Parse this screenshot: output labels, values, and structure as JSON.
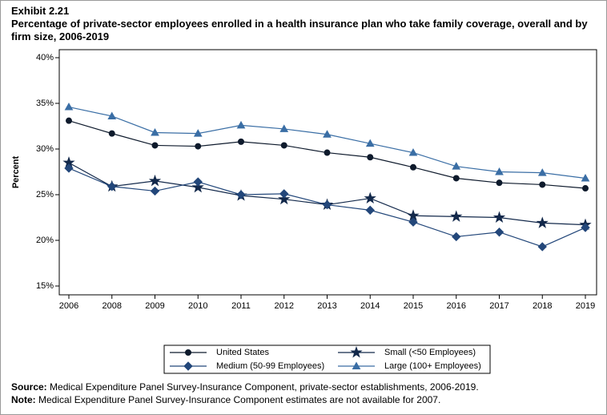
{
  "chart_data": {
    "type": "line",
    "exhibit": "Exhibit 2.21",
    "title": "Percentage of private-sector employees enrolled in a health insurance plan who take family coverage, overall and by firm size, 2006-2019",
    "y_label": "Percent",
    "categories": [
      "2006",
      "2008",
      "2009",
      "2010",
      "2011",
      "2012",
      "2013",
      "2014",
      "2015",
      "2016",
      "2017",
      "2018",
      "2019"
    ],
    "series": [
      {
        "name": "United States",
        "color": "#0e1a2c",
        "marker": "circle",
        "values": [
          33.1,
          31.7,
          30.4,
          30.3,
          30.8,
          30.4,
          29.6,
          29.1,
          28.0,
          26.8,
          26.3,
          26.1,
          25.7
        ]
      },
      {
        "name": "Small (<50 Employees)",
        "color": "#13294b",
        "marker": "star",
        "values": [
          28.5,
          25.9,
          26.5,
          25.8,
          24.9,
          24.5,
          23.9,
          24.6,
          22.7,
          22.6,
          22.5,
          21.9,
          21.7
        ]
      },
      {
        "name": "Medium (50-99 Employees)",
        "color": "#23477a",
        "marker": "diamond",
        "values": [
          27.9,
          25.9,
          25.4,
          26.4,
          25.0,
          25.1,
          23.9,
          23.3,
          22.0,
          20.4,
          20.9,
          19.3,
          21.4
        ]
      },
      {
        "name": "Large (100+ Employees)",
        "color": "#3a6ea5",
        "marker": "triangle",
        "values": [
          34.6,
          33.6,
          31.8,
          31.7,
          32.6,
          32.2,
          31.6,
          30.6,
          29.6,
          28.1,
          27.5,
          27.4,
          26.8
        ]
      }
    ],
    "ylim": [
      15,
      40
    ],
    "yticks": [
      {
        "value": 15,
        "label": "15%"
      },
      {
        "value": 20,
        "label": "20%"
      },
      {
        "value": 25,
        "label": "25%"
      },
      {
        "value": 30,
        "label": "30%"
      },
      {
        "value": 35,
        "label": "35%"
      },
      {
        "value": 40,
        "label": "40%"
      }
    ],
    "grid": false,
    "legend": "bottom",
    "notes": [
      {
        "label": "Source:",
        "text": "Medical Expenditure Panel Survey-Insurance Component, private-sector establishments, 2006-2019."
      },
      {
        "label": "Note:",
        "text": "Medical Expenditure Panel Survey-Insurance Component estimates are not available for 2007."
      }
    ]
  }
}
